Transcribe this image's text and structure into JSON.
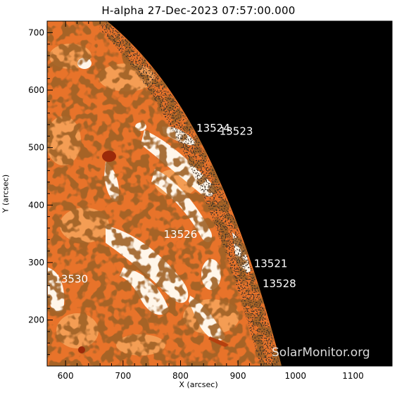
{
  "title": "H-alpha 27-Dec-2023 07:57:00.000",
  "x_axis_label": "X (arcsec)",
  "y_axis_label": "Y (arcsec)",
  "x_ticks": [
    "600",
    "700",
    "800",
    "900",
    "1000",
    "1100"
  ],
  "y_ticks": [
    "200",
    "300",
    "400",
    "500",
    "600",
    "700"
  ],
  "watermark": "SolarMonitor.org",
  "colors": {
    "sky": "#000000",
    "chromosphere_base": "#e8732a",
    "chromosphere_light": "#f6a55c",
    "plage": "#fff6ea",
    "dark_spot": "#9c2a0a",
    "label": "#ffffff"
  },
  "regions": [
    {
      "id": "13524",
      "x": 835,
      "y": 528
    },
    {
      "id": "13523",
      "x": 875,
      "y": 522
    },
    {
      "id": "13526",
      "x": 778,
      "y": 343
    },
    {
      "id": "13521",
      "x": 935,
      "y": 292
    },
    {
      "id": "13528",
      "x": 950,
      "y": 257
    },
    {
      "id": "13530",
      "x": 588,
      "y": 265
    }
  ]
}
